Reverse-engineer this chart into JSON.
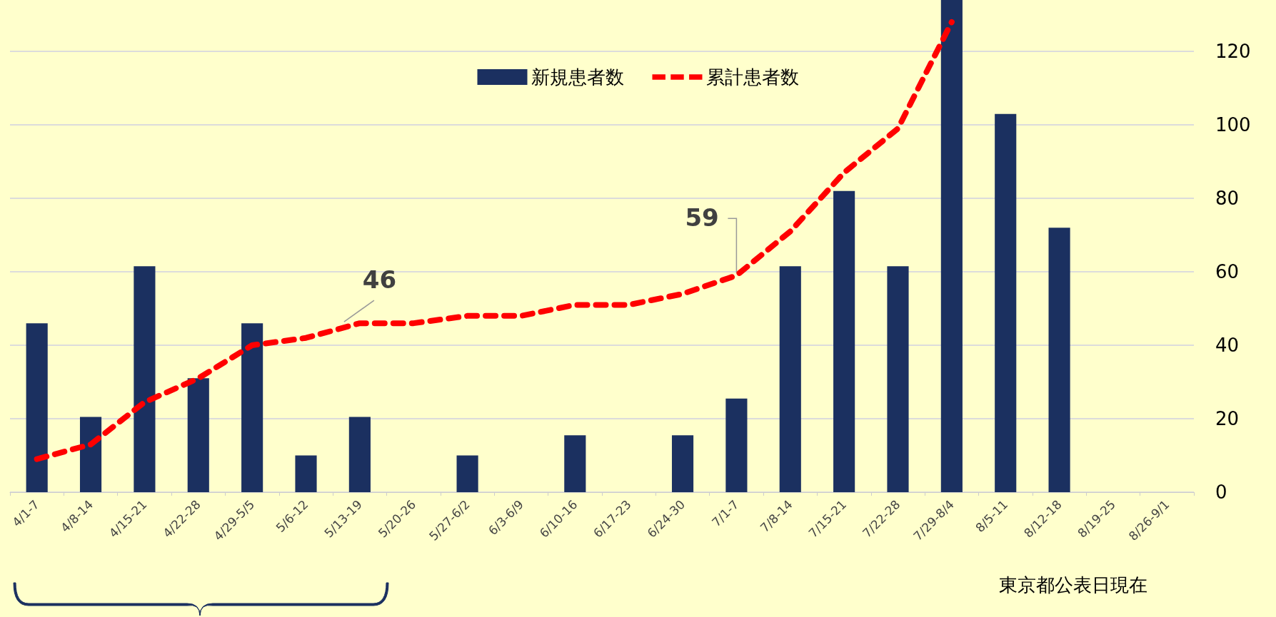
{
  "chart_data": {
    "type": "bar",
    "categories": [
      "4/1-7",
      "4/8-14",
      "4/15-21",
      "4/22-28",
      "4/29-5/5",
      "5/6-12",
      "5/13-19",
      "5/20-26",
      "5/27-6/2",
      "6/3-6/9",
      "6/10-16",
      "6/17-23",
      "6/24-30",
      "7/1-7",
      "7/8-14",
      "7/15-21",
      "7/22-28",
      "7/29-8/4",
      "8/5-11",
      "8/12-18",
      "8/19-25",
      "8/26-9/1"
    ],
    "series": [
      {
        "name": "新規患者数",
        "color": "#1b3060",
        "values": [
          46,
          20.5,
          61.5,
          31,
          46,
          10,
          20.5,
          0,
          10,
          0,
          15.5,
          0,
          15.5,
          25.5,
          61.5,
          82,
          61.5,
          134,
          103,
          72,
          null,
          null
        ]
      },
      {
        "name": "累計患者数",
        "type": "line",
        "color": "#ff0000",
        "line_style": "dashed",
        "marker": "none",
        "values": [
          9,
          13,
          24.5,
          31,
          40,
          42,
          46,
          46,
          48,
          48,
          51,
          51,
          54,
          59,
          71,
          87,
          99,
          128,
          null,
          null,
          null,
          null
        ]
      }
    ],
    "ylim": [
      0,
      134
    ],
    "yticks": [
      0,
      20,
      40,
      60,
      80,
      100,
      120
    ],
    "grid": "y",
    "legend": "top",
    "annotations": [
      {
        "text": "46",
        "x": "5/13-19",
        "y": 46
      },
      {
        "text": "59",
        "x": "7/1-7",
        "y": 59
      },
      "東京都公表日現在"
    ]
  }
}
